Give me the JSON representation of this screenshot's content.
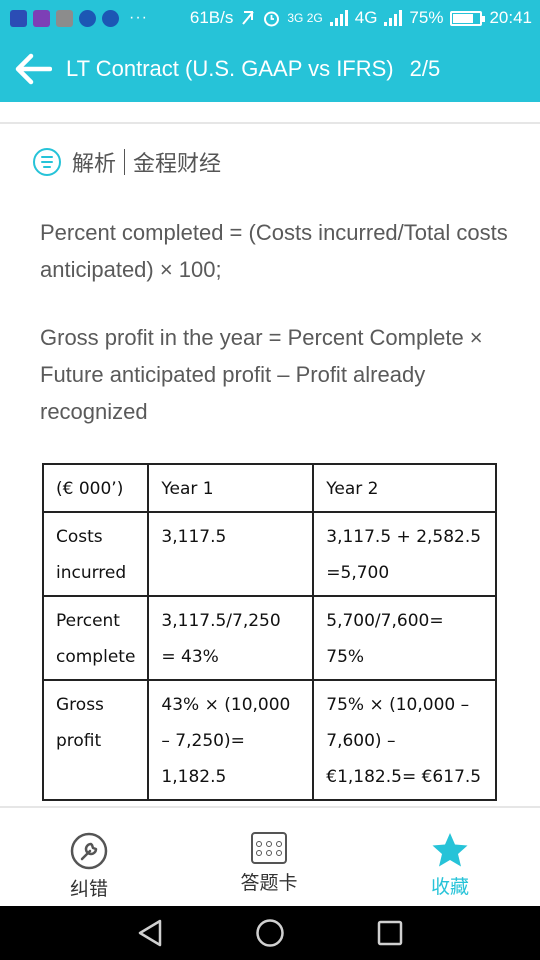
{
  "status_bar": {
    "speed": "61B/s",
    "net1": "3G 2G",
    "net2": "4G",
    "battery_percent": "75%",
    "battery_level": 0.75,
    "time": "20:41",
    "dots": "···"
  },
  "header": {
    "title": "LT Contract (U.S. GAAP vs IFRS)",
    "page": "2/5"
  },
  "section": {
    "label": "解析",
    "source": "金程财经"
  },
  "paragraphs": [
    "Percent completed = (Costs incurred/Total costs anticipated) × 100;",
    "Gross profit in the year = Percent Complete × Future anticipated profit – Profit already recognized"
  ],
  "table": {
    "headers": [
      "(€ 000’)",
      "Year 1",
      "Year 2"
    ],
    "rows": [
      [
        "Costs incurred",
        "3,117.5",
        "3,117.5 + 2,582.5 =5,700"
      ],
      [
        "Percent complete",
        "3,117.5/7,250 = 43%",
        "5,700/7,600= 75%"
      ],
      [
        "Gross profit",
        "43% × (10,000 – 7,250)= 1,182.5",
        "75% × (10,000 – 7,600) – €1,182.5= €617.5"
      ]
    ]
  },
  "toolbar": {
    "report": "纠错",
    "answer_card": "答题卡",
    "favorite": "收藏"
  },
  "colors": {
    "accent": "#26c3d8"
  }
}
